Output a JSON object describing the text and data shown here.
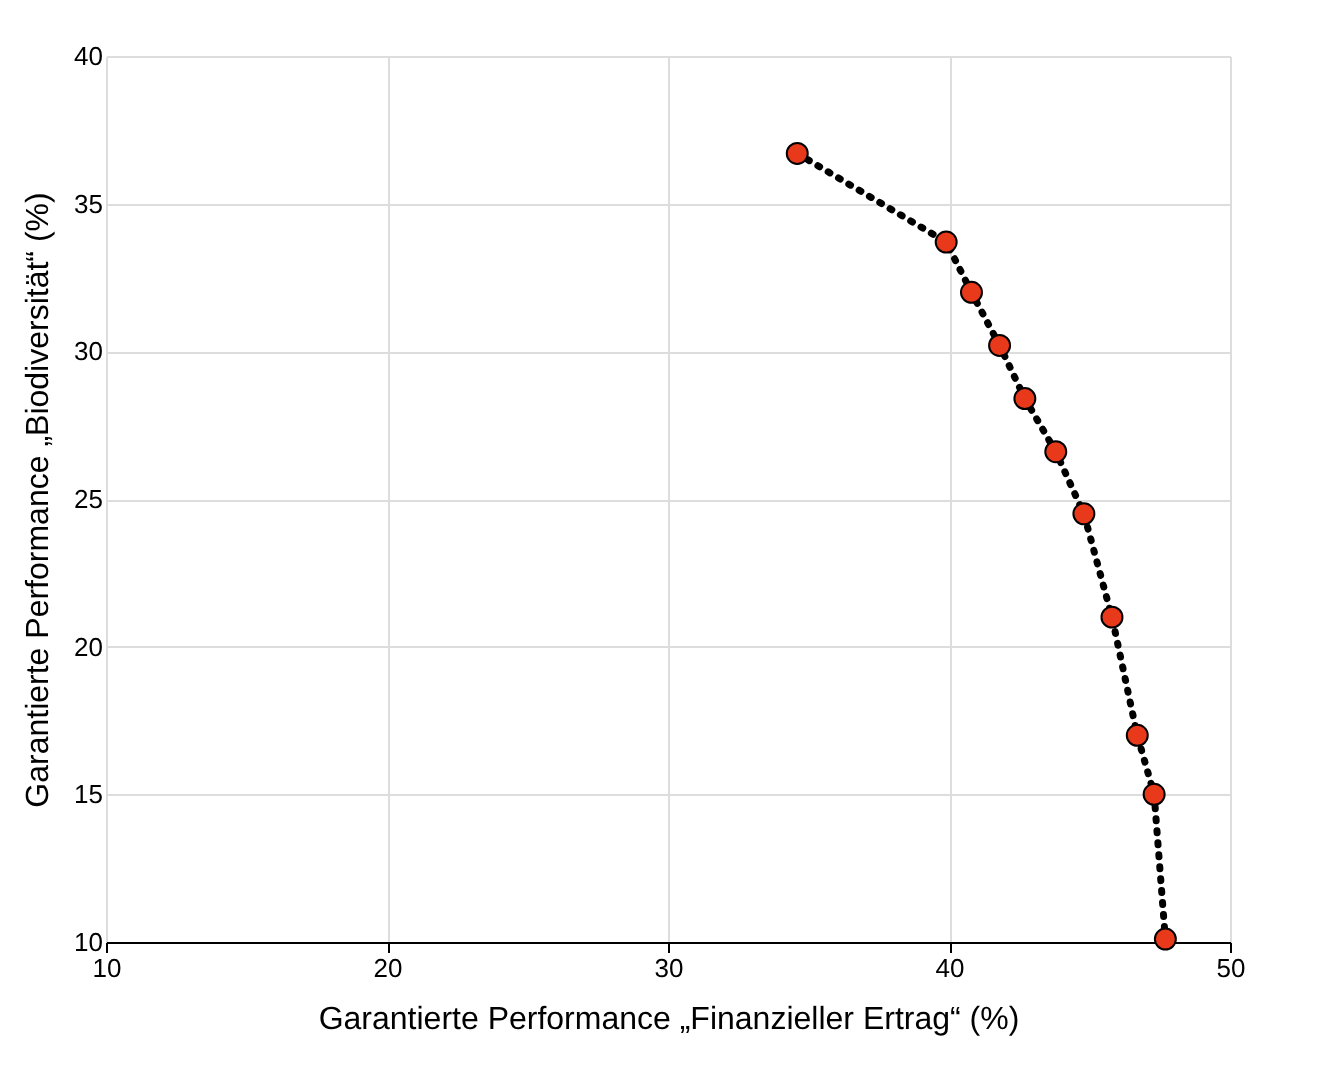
{
  "chart_data": {
    "type": "line",
    "xlabel": "Garantierte Performance „Finanzieller Ertrag“ (%)",
    "ylabel": "Garantierte Performance „Biodiversität“ (%)",
    "x": [
      34.6,
      39.9,
      40.8,
      41.8,
      42.7,
      43.8,
      44.8,
      45.8,
      46.7,
      47.3,
      47.7
    ],
    "series": [
      {
        "color": "#e8391a",
        "values": [
          36.7,
          33.7,
          32.0,
          30.2,
          28.4,
          26.6,
          24.5,
          21.0,
          17.0,
          15.0,
          10.1
        ]
      }
    ],
    "xlim": [
      10,
      50
    ],
    "xticks": [
      10,
      20,
      30,
      40,
      50
    ],
    "ylim": [
      10,
      40
    ],
    "yticks": [
      10,
      15,
      20,
      25,
      30,
      35,
      40
    ],
    "grid": true,
    "marker": "circle",
    "line_style": "dotted"
  }
}
